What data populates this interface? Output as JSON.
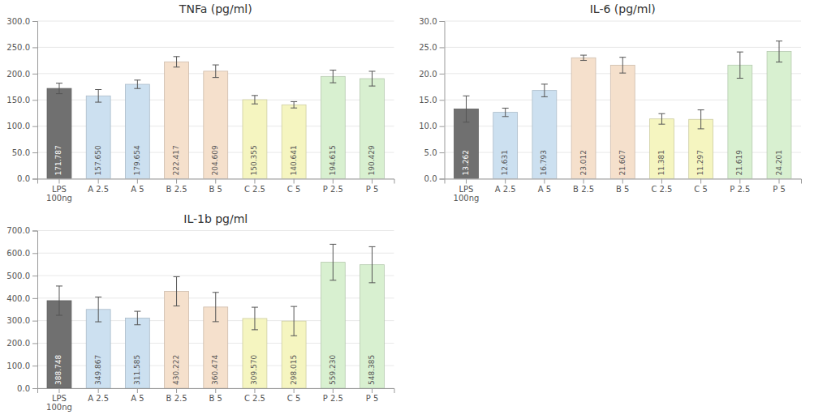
{
  "chart_data": [
    {
      "type": "bar",
      "title": "TNFa (pg/ml)",
      "categories": [
        "LPS\n100ng",
        "A 2.5",
        "A 5",
        "B 2.5",
        "B 5",
        "C 2.5",
        "C 5",
        "P 2.5",
        "P 5"
      ],
      "values": [
        171.787,
        157.65,
        179.654,
        222.417,
        204.609,
        150.355,
        140.641,
        194.615,
        190.429
      ],
      "value_labels": [
        "171.787",
        "157.650",
        "179.654",
        "222.417",
        "204.609",
        "150.355",
        "140.641",
        "194.615",
        "190.429"
      ],
      "errors": [
        10,
        12,
        8,
        10,
        12,
        8,
        6,
        12,
        14
      ],
      "colors": [
        "#707070",
        "#cce0f0",
        "#cce0f0",
        "#f5e0cc",
        "#f5e0cc",
        "#f5f5c0",
        "#f5f5c0",
        "#d8f0d0",
        "#d8f0d0"
      ],
      "ylim": [
        0,
        300
      ],
      "yticks": [
        {
          "value": 0,
          "label": "0.0"
        },
        {
          "value": 50,
          "label": "50.0"
        },
        {
          "value": 100,
          "label": "100.0"
        },
        {
          "value": 150,
          "label": "150.0"
        },
        {
          "value": 200,
          "label": "200.0"
        },
        {
          "value": 250,
          "label": "250.0"
        },
        {
          "value": 300,
          "label": "300.0"
        }
      ],
      "grid": true,
      "data_labels": true
    },
    {
      "type": "bar",
      "title": "IL-6 (pg/ml)",
      "categories": [
        "LPS\n100ng",
        "A 2.5",
        "A 5",
        "B 2.5",
        "B 5",
        "C 2.5",
        "C 5",
        "P 2.5",
        "P 5"
      ],
      "values": [
        13.262,
        12.631,
        16.793,
        23.012,
        21.607,
        11.381,
        11.297,
        21.619,
        24.201
      ],
      "value_labels": [
        "13.262",
        "12.631",
        "16.793",
        "23.012",
        "21.607",
        "11.381",
        "11.297",
        "21.619",
        "24.201"
      ],
      "errors": [
        2.5,
        0.8,
        1.2,
        0.5,
        1.5,
        1.0,
        1.8,
        2.5,
        2.0
      ],
      "colors": [
        "#707070",
        "#cce0f0",
        "#cce0f0",
        "#f5e0cc",
        "#f5e0cc",
        "#f5f5c0",
        "#f5f5c0",
        "#d8f0d0",
        "#d8f0d0"
      ],
      "ylim": [
        0,
        30
      ],
      "yticks": [
        {
          "value": 0,
          "label": "0.0"
        },
        {
          "value": 5,
          "label": "5.0"
        },
        {
          "value": 10,
          "label": "10.0"
        },
        {
          "value": 15,
          "label": "15.0"
        },
        {
          "value": 20,
          "label": "20.0"
        },
        {
          "value": 25,
          "label": "25.0"
        },
        {
          "value": 30,
          "label": "30.0"
        }
      ],
      "grid": true,
      "data_labels": true
    },
    {
      "type": "bar",
      "title": "IL-1b pg/ml",
      "categories": [
        "LPS\n100ng",
        "A 2.5",
        "A 5",
        "B 2.5",
        "B 5",
        "C 2.5",
        "C 5",
        "P 2.5",
        "P 5"
      ],
      "values": [
        388.748,
        349.867,
        311.585,
        430.222,
        360.474,
        309.57,
        298.015,
        559.23,
        548.385
      ],
      "value_labels": [
        "388.748",
        "349.867",
        "311.585",
        "430.222",
        "360.474",
        "309.570",
        "298.015",
        "559.230",
        "548.385"
      ],
      "errors": [
        65,
        55,
        30,
        65,
        65,
        50,
        65,
        80,
        80
      ],
      "colors": [
        "#707070",
        "#cce0f0",
        "#cce0f0",
        "#f5e0cc",
        "#f5e0cc",
        "#f5f5c0",
        "#f5f5c0",
        "#d8f0d0",
        "#d8f0d0"
      ],
      "ylim": [
        0,
        700
      ],
      "yticks": [
        {
          "value": 0,
          "label": "0.0"
        },
        {
          "value": 100,
          "label": "100.0"
        },
        {
          "value": 200,
          "label": "200.0"
        },
        {
          "value": 300,
          "label": "300.0"
        },
        {
          "value": 400,
          "label": "400.0"
        },
        {
          "value": 500,
          "label": "500.0"
        },
        {
          "value": 600,
          "label": "600.0"
        },
        {
          "value": 700,
          "label": "700.0"
        }
      ],
      "grid": true,
      "data_labels": true
    }
  ]
}
